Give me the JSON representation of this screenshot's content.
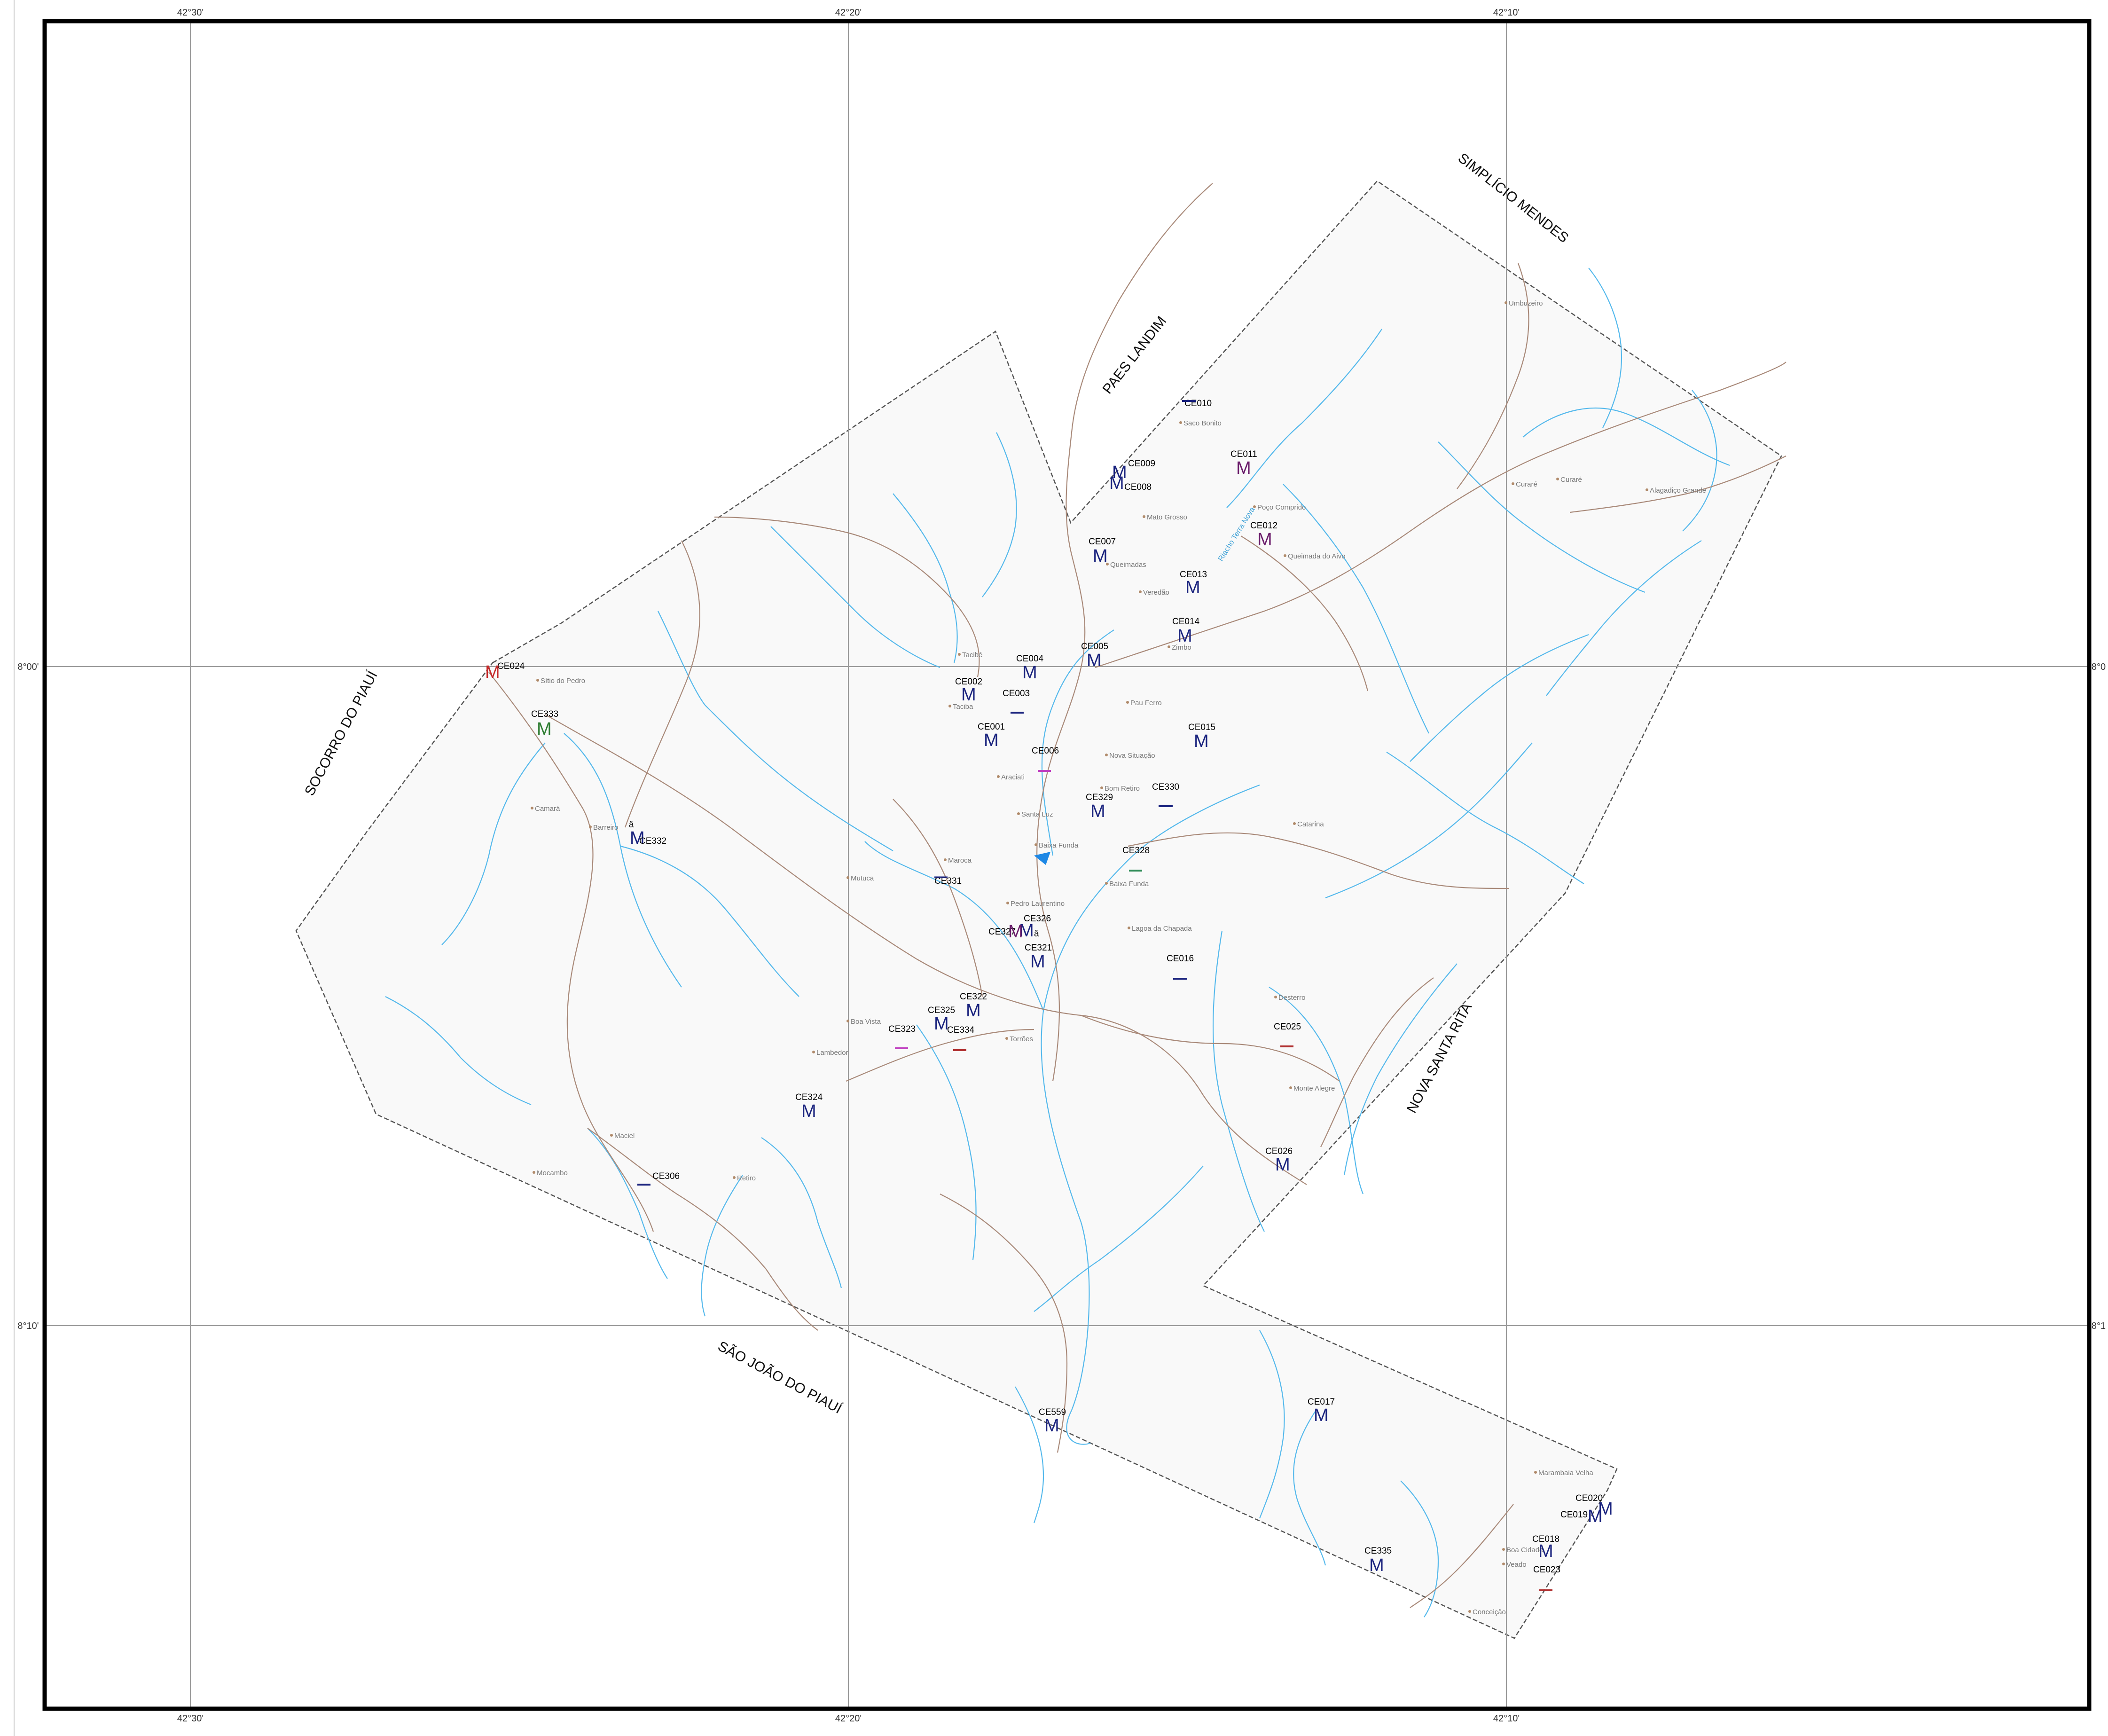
{
  "colors": {
    "river": "#55b9ec",
    "road": "#a98a7a",
    "boundary": "#555555",
    "area_fill": "#f9f9f9",
    "frame": "#000000",
    "marker_blue": "#1a237e",
    "marker_purple": "#6a1b6a",
    "marker_red": "#c62828",
    "marker_green": "#2e7d32",
    "dash_purple": "#c040c0",
    "dash_teal": "#2e8b57",
    "dash_red": "#b03030"
  },
  "coords": {
    "top": [
      "42°30'",
      "42°20'",
      "42°10'"
    ],
    "bottom": [
      "42°30'",
      "42°20'",
      "42°10'"
    ],
    "left": [
      "8°00'",
      "8°10'"
    ],
    "right": [
      "8°0",
      "8°1"
    ]
  },
  "municipalities": [
    {
      "id": "sjc",
      "name": "SIMPLÍCIO MENDES"
    },
    {
      "id": "pfl",
      "name": "PAES LANDIM"
    },
    {
      "id": "scp",
      "name": "SOCORRO DO PIAUÍ"
    },
    {
      "id": "nsr",
      "name": "NOVA SANTA RITA"
    },
    {
      "id": "sjp",
      "name": "SÃO JOÃO DO PIAUÍ"
    }
  ],
  "river_label": "Riacho Terra Nova",
  "stations": [
    {
      "id": "CE024",
      "label": "CE024",
      "symbol": "M",
      "color": "red"
    },
    {
      "id": "CE333",
      "label": "CE333",
      "symbol": "M",
      "color": "green"
    },
    {
      "id": "CE332",
      "label": "CE332",
      "symbol": "M",
      "color": "blue"
    },
    {
      "id": "CE010",
      "label": "CE010",
      "symbol": "dash",
      "color": "blue"
    },
    {
      "id": "CE009",
      "label": "CE009",
      "symbol": "M",
      "color": "blue"
    },
    {
      "id": "CE008",
      "label": "CE008",
      "symbol": "M",
      "color": "blue"
    },
    {
      "id": "CE011",
      "label": "CE011",
      "symbol": "M",
      "color": "purple"
    },
    {
      "id": "CE012",
      "label": "CE012",
      "symbol": "M",
      "color": "purple"
    },
    {
      "id": "CE007",
      "label": "CE007",
      "symbol": "M",
      "color": "blue"
    },
    {
      "id": "CE013",
      "label": "CE013",
      "symbol": "M",
      "color": "blue"
    },
    {
      "id": "CE014",
      "label": "CE014",
      "symbol": "M",
      "color": "blue"
    },
    {
      "id": "CE005",
      "label": "CE005",
      "symbol": "M",
      "color": "blue"
    },
    {
      "id": "CE004",
      "label": "CE004",
      "symbol": "M",
      "color": "blue"
    },
    {
      "id": "CE002",
      "label": "CE002",
      "symbol": "M",
      "color": "blue"
    },
    {
      "id": "CE003",
      "label": "CE003",
      "symbol": "dash",
      "color": "blue"
    },
    {
      "id": "CE001",
      "label": "CE001",
      "symbol": "M",
      "color": "blue"
    },
    {
      "id": "CE006",
      "label": "CE006",
      "symbol": "dash",
      "color": "purple"
    },
    {
      "id": "CE015",
      "label": "CE015",
      "symbol": "M",
      "color": "blue"
    },
    {
      "id": "CE330",
      "label": "CE330",
      "symbol": "dash",
      "color": "blue"
    },
    {
      "id": "CE329",
      "label": "CE329",
      "symbol": "M",
      "color": "blue"
    },
    {
      "id": "CE328",
      "label": "CE328",
      "symbol": "dash",
      "color": "teal"
    },
    {
      "id": "CE331",
      "label": "CE331",
      "symbol": "dash",
      "color": "blue"
    },
    {
      "id": "CE326",
      "label": "CE326",
      "symbol": "M",
      "color": "blue"
    },
    {
      "id": "CE327",
      "label": "CE327",
      "symbol": "M",
      "color": "purple"
    },
    {
      "id": "CE321",
      "label": "CE321",
      "symbol": "M",
      "color": "blue"
    },
    {
      "id": "CE016",
      "label": "CE016",
      "symbol": "dash",
      "color": "blue"
    },
    {
      "id": "CE322",
      "label": "CE322",
      "symbol": "M",
      "color": "blue"
    },
    {
      "id": "CE325",
      "label": "CE325",
      "symbol": "M",
      "color": "blue"
    },
    {
      "id": "CE323",
      "label": "CE323",
      "symbol": "dash",
      "color": "purple"
    },
    {
      "id": "CE334",
      "label": "CE334",
      "symbol": "dash",
      "color": "red"
    },
    {
      "id": "CE025",
      "label": "CE025",
      "symbol": "dash",
      "color": "red"
    },
    {
      "id": "CE324",
      "label": "CE324",
      "symbol": "M",
      "color": "blue"
    },
    {
      "id": "CE026",
      "label": "CE026",
      "symbol": "M",
      "color": "blue"
    },
    {
      "id": "CE306",
      "label": "CE306",
      "symbol": "dash",
      "color": "blue"
    },
    {
      "id": "CE559",
      "label": "CE559",
      "symbol": "M",
      "color": "blue"
    },
    {
      "id": "CE017",
      "label": "CE017",
      "symbol": "M",
      "color": "blue"
    },
    {
      "id": "CE020",
      "label": "CE020",
      "symbol": "M",
      "color": "blue"
    },
    {
      "id": "CE019",
      "label": "CE019",
      "symbol": "M",
      "color": "blue"
    },
    {
      "id": "CE018",
      "label": "CE018",
      "symbol": "M",
      "color": "blue"
    },
    {
      "id": "CE023",
      "label": "CE023",
      "symbol": "dash",
      "color": "red"
    },
    {
      "id": "CE335",
      "label": "CE335",
      "symbol": "M",
      "color": "blue"
    }
  ],
  "extra_marks": [
    "â",
    "â"
  ],
  "places": [
    "Umbuzeiro",
    "Saco Bonito",
    "Mato Grosso",
    "Poço Comprido",
    "Queimada do Aivo",
    "Queimadas",
    "Veredão",
    "Zimbo",
    "Curaré",
    "Curaré",
    "Alagadiço Grande",
    "Sítio do Pedro",
    "Tacibé",
    "Taciba",
    "Pau Ferro",
    "Nova Situação",
    "Araciati",
    "Bom Retiro",
    "Santa Luz",
    "Catarina",
    "Camará",
    "Barreiro",
    "Baixa Funda",
    "Baixa Funda",
    "Maroca",
    "Mutuca",
    "Pedro Laurentino",
    "Lagoa da Chapada",
    "Desterro",
    "Boa Vista",
    "Torrões",
    "Lambedor",
    "Monte Alegre",
    "Maciel",
    "Mocambo",
    "Retiro",
    "Marambaia Velha",
    "Boa Cidade",
    "Veado",
    "Conceição"
  ]
}
